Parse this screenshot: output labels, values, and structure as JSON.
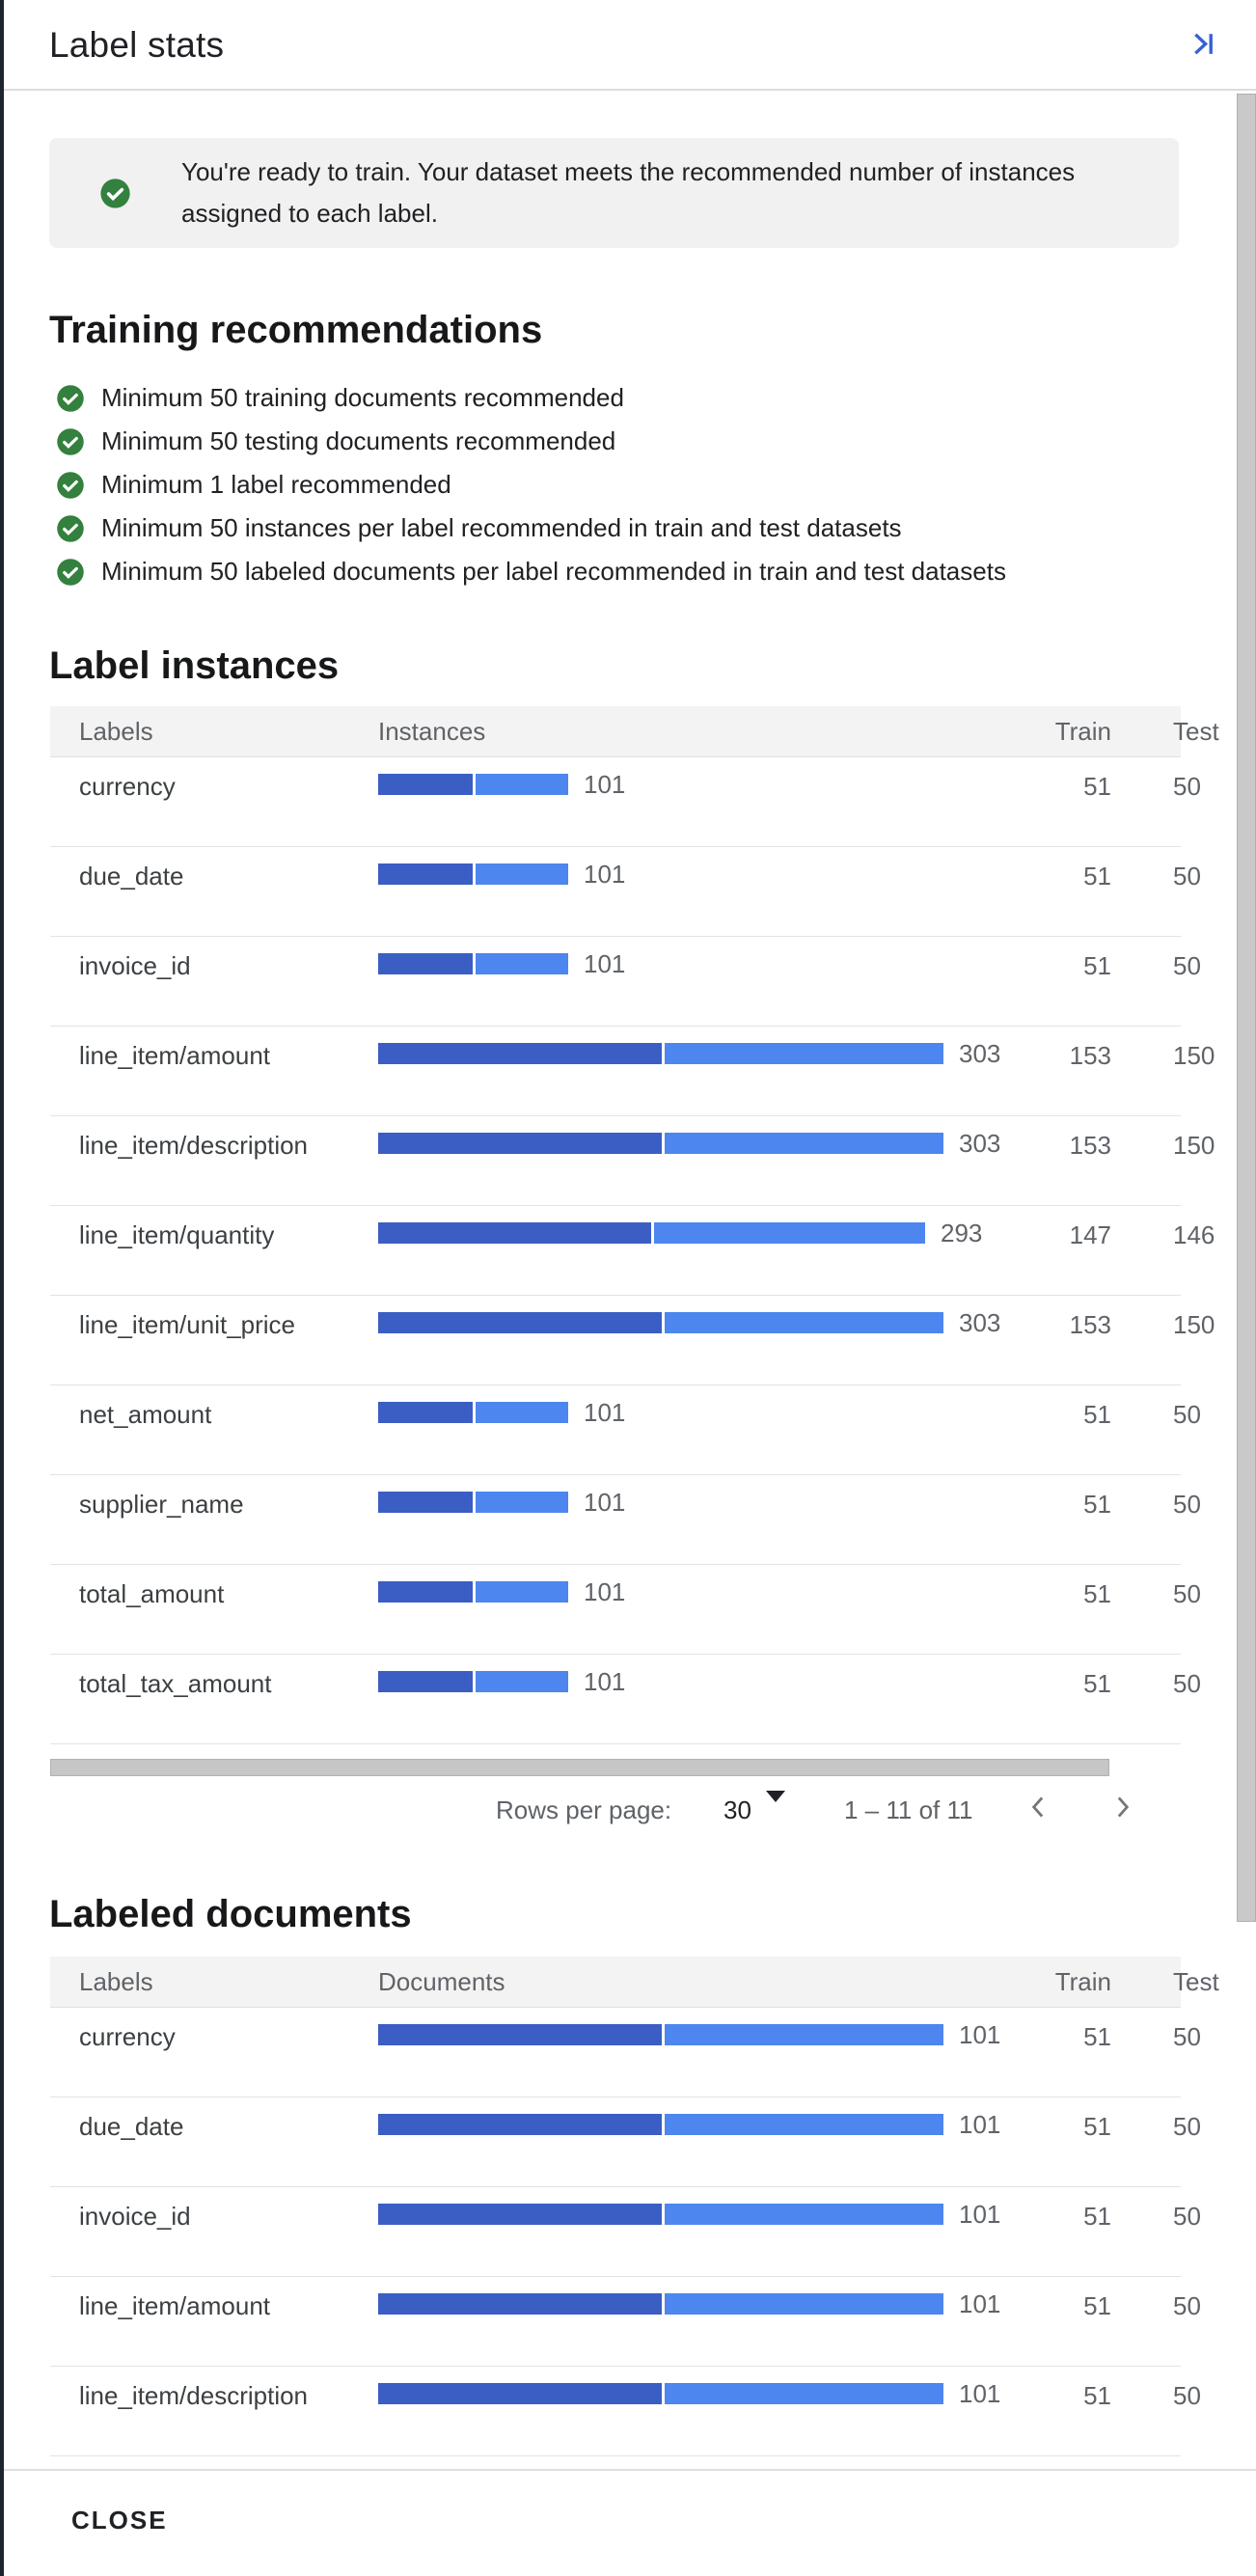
{
  "panel": {
    "title": "Label stats"
  },
  "colors": {
    "accent_blue": "#3462d0",
    "bar_train": "#3b5ec5",
    "bar_test": "#4d86ee",
    "success_green": "#34803e",
    "banner_bg": "#f1f1f1"
  },
  "banner": {
    "text": "You're ready to train. Your dataset meets the recommended number of instances assigned to each label."
  },
  "recommendations": {
    "title": "Training recommendations",
    "items": [
      "Minimum 50 training documents recommended",
      "Minimum 50 testing documents recommended",
      "Minimum 1 label recommended",
      "Minimum 50 instances per label recommended in train and test datasets",
      "Minimum 50 labeled documents per label recommended in train and test datasets"
    ]
  },
  "label_instances": {
    "title": "Label instances",
    "columns": [
      "Labels",
      "Instances",
      "Train",
      "Test"
    ],
    "max_scale": 303,
    "rows": [
      {
        "label": "currency",
        "value": 101,
        "train": 51,
        "test": 50
      },
      {
        "label": "due_date",
        "value": 101,
        "train": 51,
        "test": 50
      },
      {
        "label": "invoice_id",
        "value": 101,
        "train": 51,
        "test": 50
      },
      {
        "label": "line_item/amount",
        "value": 303,
        "train": 153,
        "test": 150
      },
      {
        "label": "line_item/description",
        "value": 303,
        "train": 153,
        "test": 150
      },
      {
        "label": "line_item/quantity",
        "value": 293,
        "train": 147,
        "test": 146
      },
      {
        "label": "line_item/unit_price",
        "value": 303,
        "train": 153,
        "test": 150
      },
      {
        "label": "net_amount",
        "value": 101,
        "train": 51,
        "test": 50
      },
      {
        "label": "supplier_name",
        "value": 101,
        "train": 51,
        "test": 50
      },
      {
        "label": "total_amount",
        "value": 101,
        "train": 51,
        "test": 50
      },
      {
        "label": "total_tax_amount",
        "value": 101,
        "train": 51,
        "test": 50
      }
    ]
  },
  "pagination": {
    "rows_per_page_label": "Rows per page:",
    "rows_per_page_value": "30",
    "range_text": "1 – 11 of 11"
  },
  "labeled_documents": {
    "title": "Labeled documents",
    "columns": [
      "Labels",
      "Documents",
      "Train",
      "Test"
    ],
    "max_scale": 101,
    "rows": [
      {
        "label": "currency",
        "value": 101,
        "train": 51,
        "test": 50
      },
      {
        "label": "due_date",
        "value": 101,
        "train": 51,
        "test": 50
      },
      {
        "label": "invoice_id",
        "value": 101,
        "train": 51,
        "test": 50
      },
      {
        "label": "line_item/amount",
        "value": 101,
        "train": 51,
        "test": 50
      },
      {
        "label": "line_item/description",
        "value": 101,
        "train": 51,
        "test": 50
      }
    ]
  },
  "footer": {
    "close_label": "CLOSE"
  }
}
